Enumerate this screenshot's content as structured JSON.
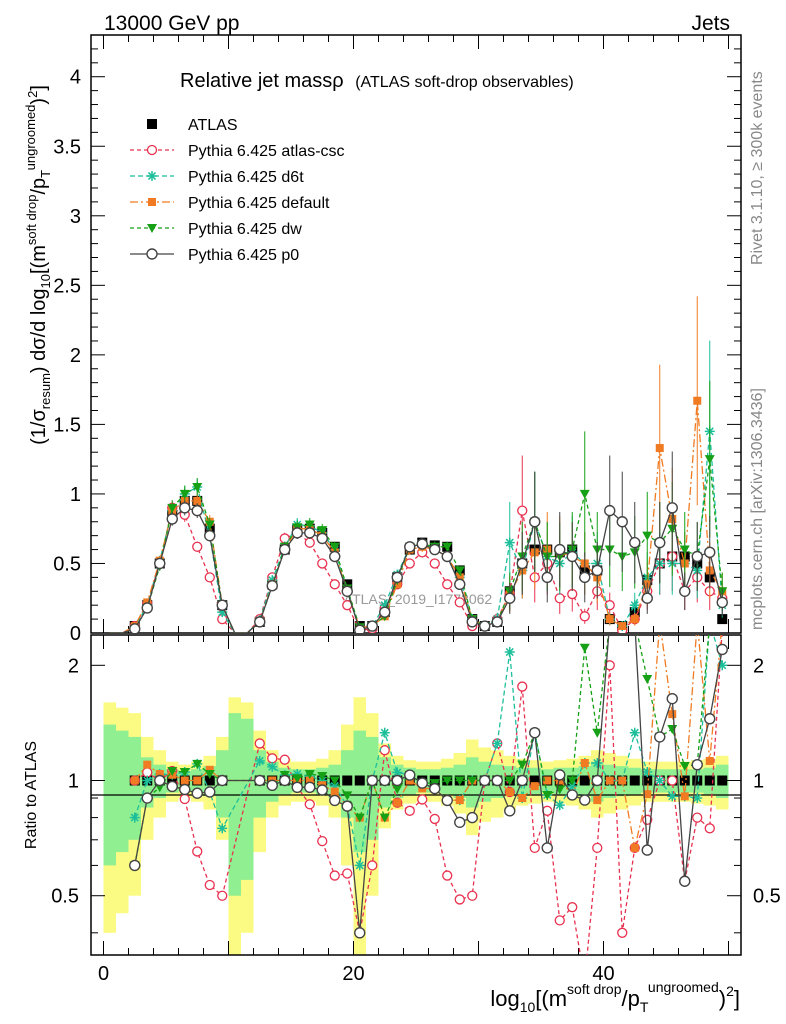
{
  "header": {
    "left": "13000 GeV pp",
    "right": "Jets"
  },
  "side_texts": {
    "rivet": "Rivet 3.1.10, ≥ 300k events",
    "mcplots": "mcplots.cern.ch [arXiv:1306.3436]"
  },
  "watermark": "ATLAS_2019_I1772062",
  "chart_data": {
    "type": "scatter",
    "title": "Relative jet massρ",
    "subtitle": "(ATLAS soft-drop observables)",
    "xlabel": "log10[(m^soft drop/pT^ungroomed)^2]",
    "ylabel": "(1/σresum) dσ/d log10[(m^soft drop/pT^ungroomed)^2]",
    "ratio_ylabel": "Ratio to ATLAS",
    "xlim": [
      -1,
      51
    ],
    "ylim": [
      0,
      4.3
    ],
    "ratio_ylim": [
      0.35,
      2.4
    ],
    "x_ticks": [
      "0",
      "20",
      "40"
    ],
    "y_ticks": [
      "0",
      "0.5",
      "1",
      "1.5",
      "2",
      "2.5",
      "3",
      "3.5",
      "4"
    ],
    "ratio_ticks": [
      "0.5",
      "1",
      "2"
    ],
    "legend_position": "top-left",
    "x": [
      0.5,
      1.5,
      2.5,
      3.5,
      4.5,
      5.5,
      6.5,
      7.5,
      8.5,
      9.5,
      10.5,
      11.5,
      12.5,
      13.5,
      14.5,
      15.5,
      16.5,
      17.5,
      18.5,
      19.5,
      20.5,
      21.5,
      22.5,
      23.5,
      24.5,
      25.5,
      26.5,
      27.5,
      28.5,
      29.5,
      30.5,
      31.5,
      32.5,
      33.5,
      34.5,
      35.5,
      36.5,
      37.5,
      38.5,
      39.5,
      40.5,
      41.5,
      42.5,
      43.5,
      44.5,
      45.5,
      46.5,
      47.5,
      48.5,
      49.5
    ],
    "series": [
      {
        "name": "ATLAS",
        "color": "#000000",
        "values": [
          0,
          0,
          0.05,
          0.2,
          0.5,
          0.85,
          0.95,
          0.95,
          0.75,
          0.2,
          0,
          0,
          0.08,
          0.35,
          0.6,
          0.75,
          0.75,
          0.72,
          0.62,
          0.35,
          0.05,
          0.05,
          0.15,
          0.4,
          0.6,
          0.65,
          0.63,
          0.62,
          0.45,
          0.1,
          0.05,
          0.08,
          0.3,
          0.5,
          0.6,
          0.6,
          0.58,
          0.6,
          0.45,
          0.45,
          0.1,
          0.05,
          0.15,
          0.38,
          0.5,
          0.55,
          0.55,
          0.5,
          0.4,
          0.1
        ],
        "ratio_band_stat": [
          0.4,
          0.35,
          0.3,
          0.15,
          0.1,
          0.07,
          0.06,
          0.07,
          0.09,
          0.2,
          0.5,
          0.45,
          0.2,
          0.12,
          0.08,
          0.07,
          0.07,
          0.08,
          0.1,
          0.2,
          0.35,
          0.3,
          0.15,
          0.1,
          0.08,
          0.07,
          0.07,
          0.08,
          0.1,
          0.15,
          0.12,
          0.1,
          0.09,
          0.08,
          0.08,
          0.07,
          0.08,
          0.08,
          0.09,
          0.12,
          0.1,
          0.09,
          0.08,
          0.07,
          0.07,
          0.07,
          0.07,
          0.07,
          0.08,
          0.1
        ],
        "ratio_band_total": [
          0.6,
          0.55,
          0.5,
          0.3,
          0.2,
          0.12,
          0.1,
          0.12,
          0.16,
          0.3,
          0.65,
          0.6,
          0.35,
          0.2,
          0.14,
          0.12,
          0.12,
          0.14,
          0.2,
          0.4,
          0.65,
          0.5,
          0.25,
          0.16,
          0.13,
          0.12,
          0.12,
          0.14,
          0.18,
          0.28,
          0.22,
          0.2,
          0.16,
          0.14,
          0.13,
          0.12,
          0.13,
          0.14,
          0.16,
          0.2,
          0.18,
          0.16,
          0.14,
          0.12,
          0.12,
          0.12,
          0.12,
          0.13,
          0.14,
          0.16
        ]
      },
      {
        "name": "Pythia 6.425 atlas-csc",
        "color": "#e8314f",
        "values": [
          0,
          0,
          0.05,
          0.21,
          0.5,
          0.9,
          0.85,
          0.62,
          0.4,
          0.1,
          0,
          0,
          0.1,
          0.4,
          0.68,
          0.72,
          0.65,
          0.5,
          0.35,
          0.2,
          0.02,
          0.03,
          0.18,
          0.35,
          0.5,
          0.58,
          0.5,
          0.35,
          0.22,
          0.05,
          0.05,
          0.1,
          0.28,
          0.88,
          0.4,
          0.5,
          0.25,
          0.28,
          0.12,
          0.3,
          0.2,
          0.02,
          0.1,
          0.3,
          0.5,
          0.55,
          0.3,
          0.4,
          0.3,
          0.25
        ]
      },
      {
        "name": "Pythia 6.425 d6t",
        "color": "#1dbf9a",
        "values": [
          0,
          0,
          0.04,
          0.2,
          0.52,
          0.88,
          1.0,
          1.05,
          0.7,
          0.15,
          0,
          0,
          0.09,
          0.38,
          0.62,
          0.78,
          0.77,
          0.72,
          0.6,
          0.3,
          0.03,
          0.05,
          0.2,
          0.42,
          0.62,
          0.64,
          0.6,
          0.55,
          0.4,
          0.1,
          0.05,
          0.1,
          0.65,
          0.45,
          0.8,
          0.55,
          0.5,
          0.58,
          0.5,
          0.5,
          0.1,
          0.05,
          0.2,
          0.4,
          0.5,
          0.5,
          0.5,
          0.45,
          1.45,
          0.2
        ]
      },
      {
        "name": "Pythia 6.425 default",
        "color": "#f07b22",
        "values": [
          0,
          0,
          0.05,
          0.22,
          0.52,
          0.88,
          0.95,
          0.95,
          0.8,
          0.2,
          0,
          0,
          0.08,
          0.35,
          0.6,
          0.75,
          0.75,
          0.7,
          0.58,
          0.3,
          0.04,
          0.05,
          0.12,
          0.35,
          0.6,
          0.62,
          0.6,
          0.55,
          0.4,
          0.1,
          0.05,
          0.08,
          0.28,
          0.45,
          0.58,
          0.6,
          0.58,
          0.55,
          0.5,
          0.4,
          0.1,
          0.05,
          0.1,
          0.35,
          1.33,
          0.82,
          0.5,
          1.67,
          0.45,
          0.3
        ]
      },
      {
        "name": "Pythia 6.425 dw",
        "color": "#16a016",
        "values": [
          0,
          0,
          0.03,
          0.18,
          0.48,
          0.9,
          1.0,
          1.05,
          0.78,
          0.2,
          0,
          0,
          0.08,
          0.34,
          0.62,
          0.76,
          0.78,
          0.74,
          0.62,
          0.32,
          0.04,
          0.05,
          0.12,
          0.38,
          0.62,
          0.64,
          0.62,
          0.62,
          0.45,
          0.1,
          0.05,
          0.08,
          0.3,
          0.55,
          0.8,
          0.55,
          0.55,
          0.6,
          1.0,
          0.6,
          0.6,
          0.55,
          0.58,
          0.7,
          0.65,
          0.75,
          0.6,
          0.55,
          1.25,
          0.3
        ]
      },
      {
        "name": "Pythia 6.425 p0",
        "color": "#444444",
        "values": [
          0,
          0,
          0.03,
          0.18,
          0.5,
          0.82,
          0.9,
          0.88,
          0.7,
          0.2,
          0,
          0,
          0.08,
          0.34,
          0.6,
          0.72,
          0.72,
          0.68,
          0.55,
          0.3,
          0.02,
          0.05,
          0.15,
          0.4,
          0.62,
          0.64,
          0.6,
          0.55,
          0.35,
          0.08,
          0.05,
          0.08,
          0.25,
          0.5,
          0.8,
          0.4,
          0.6,
          0.55,
          0.4,
          0.45,
          0.88,
          0.8,
          0.65,
          0.25,
          0.65,
          0.9,
          0.3,
          0.55,
          0.58,
          0.22
        ]
      }
    ]
  }
}
